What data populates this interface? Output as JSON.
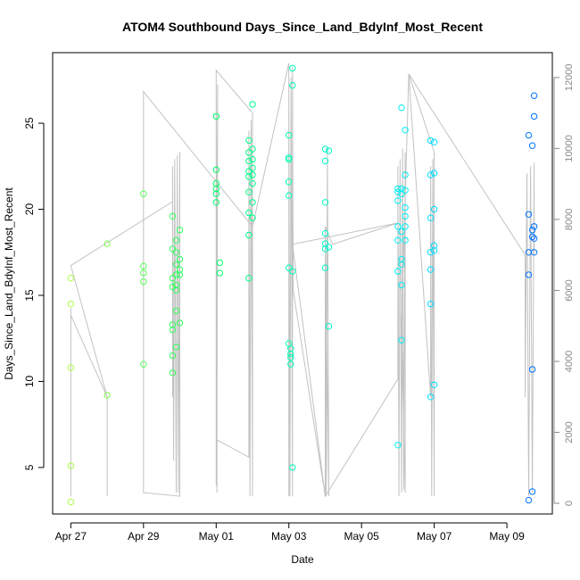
{
  "chart_data": {
    "type": "scatter",
    "title": "ATOM4 Southbound Days_Since_Land_BdyInf_Most_Recent",
    "xlabel": "Date",
    "ylabel": "Days_Since_Land_BdyInf_Most_Recent",
    "x_ticks": [
      "Apr 27",
      "Apr 29",
      "May 01",
      "May 03",
      "May 05",
      "May 07",
      "May 09"
    ],
    "x_tick_values": [
      0,
      2,
      4,
      6,
      8,
      10,
      12
    ],
    "y_ticks": [
      "5",
      "10",
      "15",
      "20",
      "25"
    ],
    "y_tick_values": [
      5,
      10,
      15,
      20,
      25
    ],
    "y2_ticks": [
      "0",
      "2000",
      "4000",
      "6000",
      "8000",
      "10000",
      "12000"
    ],
    "y2_tick_values": [
      0,
      2000,
      4000,
      6000,
      8000,
      10000,
      12000
    ],
    "xlim": [
      -0.5,
      13.25
    ],
    "ylim": [
      2.3,
      29.1
    ],
    "y2lim": [
      -300,
      12700
    ],
    "grid": false,
    "colors": {
      "gray_track": "#c2c2c2",
      "start": "#aaff44",
      "mid": "#00ff88",
      "end": "#0066ff"
    },
    "points": [
      [
        0.0,
        16.0
      ],
      [
        0.0,
        14.5
      ],
      [
        0.0,
        10.8
      ],
      [
        0.0,
        5.1
      ],
      [
        0.0,
        3.0
      ],
      [
        1.0,
        18.0
      ],
      [
        1.0,
        9.2
      ],
      [
        2.0,
        20.9
      ],
      [
        2.0,
        16.7
      ],
      [
        2.0,
        16.3
      ],
      [
        2.0,
        15.8
      ],
      [
        2.0,
        11.0
      ],
      [
        2.8,
        19.6
      ],
      [
        2.8,
        17.7
      ],
      [
        2.8,
        16.0
      ],
      [
        2.8,
        15.5
      ],
      [
        2.8,
        13.3
      ],
      [
        2.8,
        13.0
      ],
      [
        2.8,
        11.5
      ],
      [
        2.8,
        10.5
      ],
      [
        2.9,
        18.2
      ],
      [
        2.9,
        17.5
      ],
      [
        2.9,
        16.8
      ],
      [
        2.9,
        16.2
      ],
      [
        2.9,
        15.6
      ],
      [
        2.9,
        15.3
      ],
      [
        2.9,
        14.1
      ],
      [
        2.9,
        12.0
      ],
      [
        3.0,
        18.8
      ],
      [
        3.0,
        17.1
      ],
      [
        3.0,
        16.5
      ],
      [
        3.0,
        16.2
      ],
      [
        3.0,
        13.4
      ],
      [
        4.0,
        25.4
      ],
      [
        4.0,
        22.3
      ],
      [
        4.0,
        21.5
      ],
      [
        4.0,
        21.2
      ],
      [
        4.0,
        20.9
      ],
      [
        4.0,
        20.4
      ],
      [
        4.1,
        16.9
      ],
      [
        4.1,
        16.3
      ],
      [
        4.9,
        24.0
      ],
      [
        4.9,
        23.3
      ],
      [
        4.9,
        22.8
      ],
      [
        4.9,
        22.2
      ],
      [
        4.9,
        21.9
      ],
      [
        4.9,
        21.0
      ],
      [
        4.9,
        19.8
      ],
      [
        4.9,
        18.5
      ],
      [
        4.9,
        16.0
      ],
      [
        5.0,
        26.1
      ],
      [
        5.0,
        23.5
      ],
      [
        5.0,
        22.9
      ],
      [
        5.0,
        22.4
      ],
      [
        5.0,
        22.0
      ],
      [
        5.0,
        21.5
      ],
      [
        5.0,
        20.4
      ],
      [
        5.0,
        19.5
      ],
      [
        6.0,
        24.3
      ],
      [
        6.0,
        23.0
      ],
      [
        6.0,
        22.9
      ],
      [
        6.0,
        21.6
      ],
      [
        6.0,
        20.8
      ],
      [
        6.0,
        16.6
      ],
      [
        6.0,
        12.2
      ],
      [
        6.05,
        11.9
      ],
      [
        6.05,
        11.6
      ],
      [
        6.05,
        11.4
      ],
      [
        6.05,
        11.0
      ],
      [
        6.1,
        28.2
      ],
      [
        6.1,
        27.2
      ],
      [
        6.1,
        16.4
      ],
      [
        6.1,
        5.0
      ],
      [
        7.0,
        23.5
      ],
      [
        7.0,
        22.8
      ],
      [
        7.0,
        20.4
      ],
      [
        7.0,
        18.6
      ],
      [
        7.0,
        18.0
      ],
      [
        7.0,
        17.7
      ],
      [
        7.0,
        16.6
      ],
      [
        7.1,
        23.4
      ],
      [
        7.1,
        17.8
      ],
      [
        7.1,
        13.2
      ],
      [
        9.0,
        21.2
      ],
      [
        9.0,
        21.0
      ],
      [
        9.0,
        20.5
      ],
      [
        9.0,
        19.0
      ],
      [
        9.0,
        18.2
      ],
      [
        9.0,
        16.4
      ],
      [
        9.0,
        6.3
      ],
      [
        9.1,
        25.9
      ],
      [
        9.1,
        21.2
      ],
      [
        9.1,
        20.9
      ],
      [
        9.1,
        18.7
      ],
      [
        9.1,
        17.1
      ],
      [
        9.1,
        16.8
      ],
      [
        9.1,
        15.6
      ],
      [
        9.1,
        12.4
      ],
      [
        9.2,
        24.6
      ],
      [
        9.2,
        22.0
      ],
      [
        9.2,
        21.1
      ],
      [
        9.2,
        20.1
      ],
      [
        9.2,
        19.6
      ],
      [
        9.2,
        19.0
      ],
      [
        9.2,
        18.2
      ],
      [
        9.9,
        24.0
      ],
      [
        9.9,
        22.0
      ],
      [
        9.9,
        19.5
      ],
      [
        9.9,
        17.5
      ],
      [
        9.9,
        16.5
      ],
      [
        9.9,
        14.5
      ],
      [
        9.9,
        9.1
      ],
      [
        10.0,
        23.9
      ],
      [
        10.0,
        22.1
      ],
      [
        10.0,
        20.0
      ],
      [
        10.0,
        17.9
      ],
      [
        10.0,
        17.6
      ],
      [
        10.0,
        9.8
      ],
      [
        12.6,
        24.3
      ],
      [
        12.6,
        19.7
      ],
      [
        12.6,
        17.5
      ],
      [
        12.6,
        16.2
      ],
      [
        12.6,
        3.1
      ],
      [
        12.7,
        23.7
      ],
      [
        12.7,
        18.8
      ],
      [
        12.7,
        18.4
      ],
      [
        12.7,
        10.7
      ],
      [
        12.7,
        3.6
      ],
      [
        12.75,
        26.6
      ],
      [
        12.75,
        25.4
      ],
      [
        12.75,
        19.0
      ],
      [
        12.75,
        18.3
      ],
      [
        12.75,
        17.5
      ]
    ],
    "track": [
      [
        0.0,
        5500
      ],
      [
        0.0,
        200
      ],
      [
        0.0,
        5300
      ],
      [
        1.0,
        3000
      ],
      [
        1.0,
        200
      ],
      [
        1.0,
        3000
      ],
      [
        0.0,
        6700
      ],
      [
        2.8,
        8500
      ],
      [
        2.8,
        3000
      ],
      [
        2.8,
        9500
      ],
      [
        2.83,
        1200
      ],
      [
        2.86,
        9700
      ],
      [
        2.9,
        300
      ],
      [
        2.93,
        9800
      ],
      [
        2.96,
        300
      ],
      [
        3.0,
        9900
      ],
      [
        3.0,
        200
      ],
      [
        2.0,
        300
      ],
      [
        2.0,
        11600
      ],
      [
        5.0,
        7800
      ],
      [
        5.0,
        11000
      ],
      [
        4.0,
        12200
      ],
      [
        4.0,
        500
      ],
      [
        4.0,
        11600
      ],
      [
        4.02,
        300
      ],
      [
        4.04,
        11800
      ],
      [
        4.0,
        1800
      ],
      [
        4.9,
        1300
      ],
      [
        4.9,
        10500
      ],
      [
        4.93,
        200
      ],
      [
        4.96,
        10800
      ],
      [
        5.0,
        200
      ],
      [
        5.0,
        7800
      ],
      [
        6.0,
        12400
      ],
      [
        6.0,
        200
      ],
      [
        6.0,
        11800
      ],
      [
        6.03,
        200
      ],
      [
        6.06,
        12000
      ],
      [
        6.1,
        200
      ],
      [
        6.1,
        12300
      ],
      [
        6.12,
        6000
      ],
      [
        7.0,
        200
      ],
      [
        7.0,
        7800
      ],
      [
        7.03,
        200
      ],
      [
        7.06,
        10000
      ],
      [
        7.1,
        200
      ],
      [
        7.0,
        7800
      ],
      [
        7.2,
        7300
      ],
      [
        9.0,
        7900
      ],
      [
        6.1,
        7300
      ],
      [
        7.0,
        200
      ],
      [
        9.0,
        3500
      ],
      [
        9.0,
        9500
      ],
      [
        9.03,
        200
      ],
      [
        9.06,
        9700
      ],
      [
        9.1,
        300
      ],
      [
        9.13,
        10000
      ],
      [
        9.16,
        400
      ],
      [
        9.2,
        9900
      ],
      [
        9.2,
        300
      ],
      [
        9.1,
        5000
      ],
      [
        9.3,
        12100
      ],
      [
        9.9,
        3000
      ],
      [
        9.9,
        9500
      ],
      [
        9.93,
        200
      ],
      [
        9.96,
        9700
      ],
      [
        10.0,
        200
      ],
      [
        10.0,
        9900
      ],
      [
        9.3,
        12100
      ],
      [
        12.5,
        7000
      ],
      [
        12.5,
        3000
      ],
      [
        12.55,
        9300
      ],
      [
        12.6,
        200
      ],
      [
        12.65,
        9500
      ],
      [
        12.7,
        300
      ],
      [
        12.75,
        9600
      ],
      [
        12.75,
        7000
      ]
    ]
  }
}
